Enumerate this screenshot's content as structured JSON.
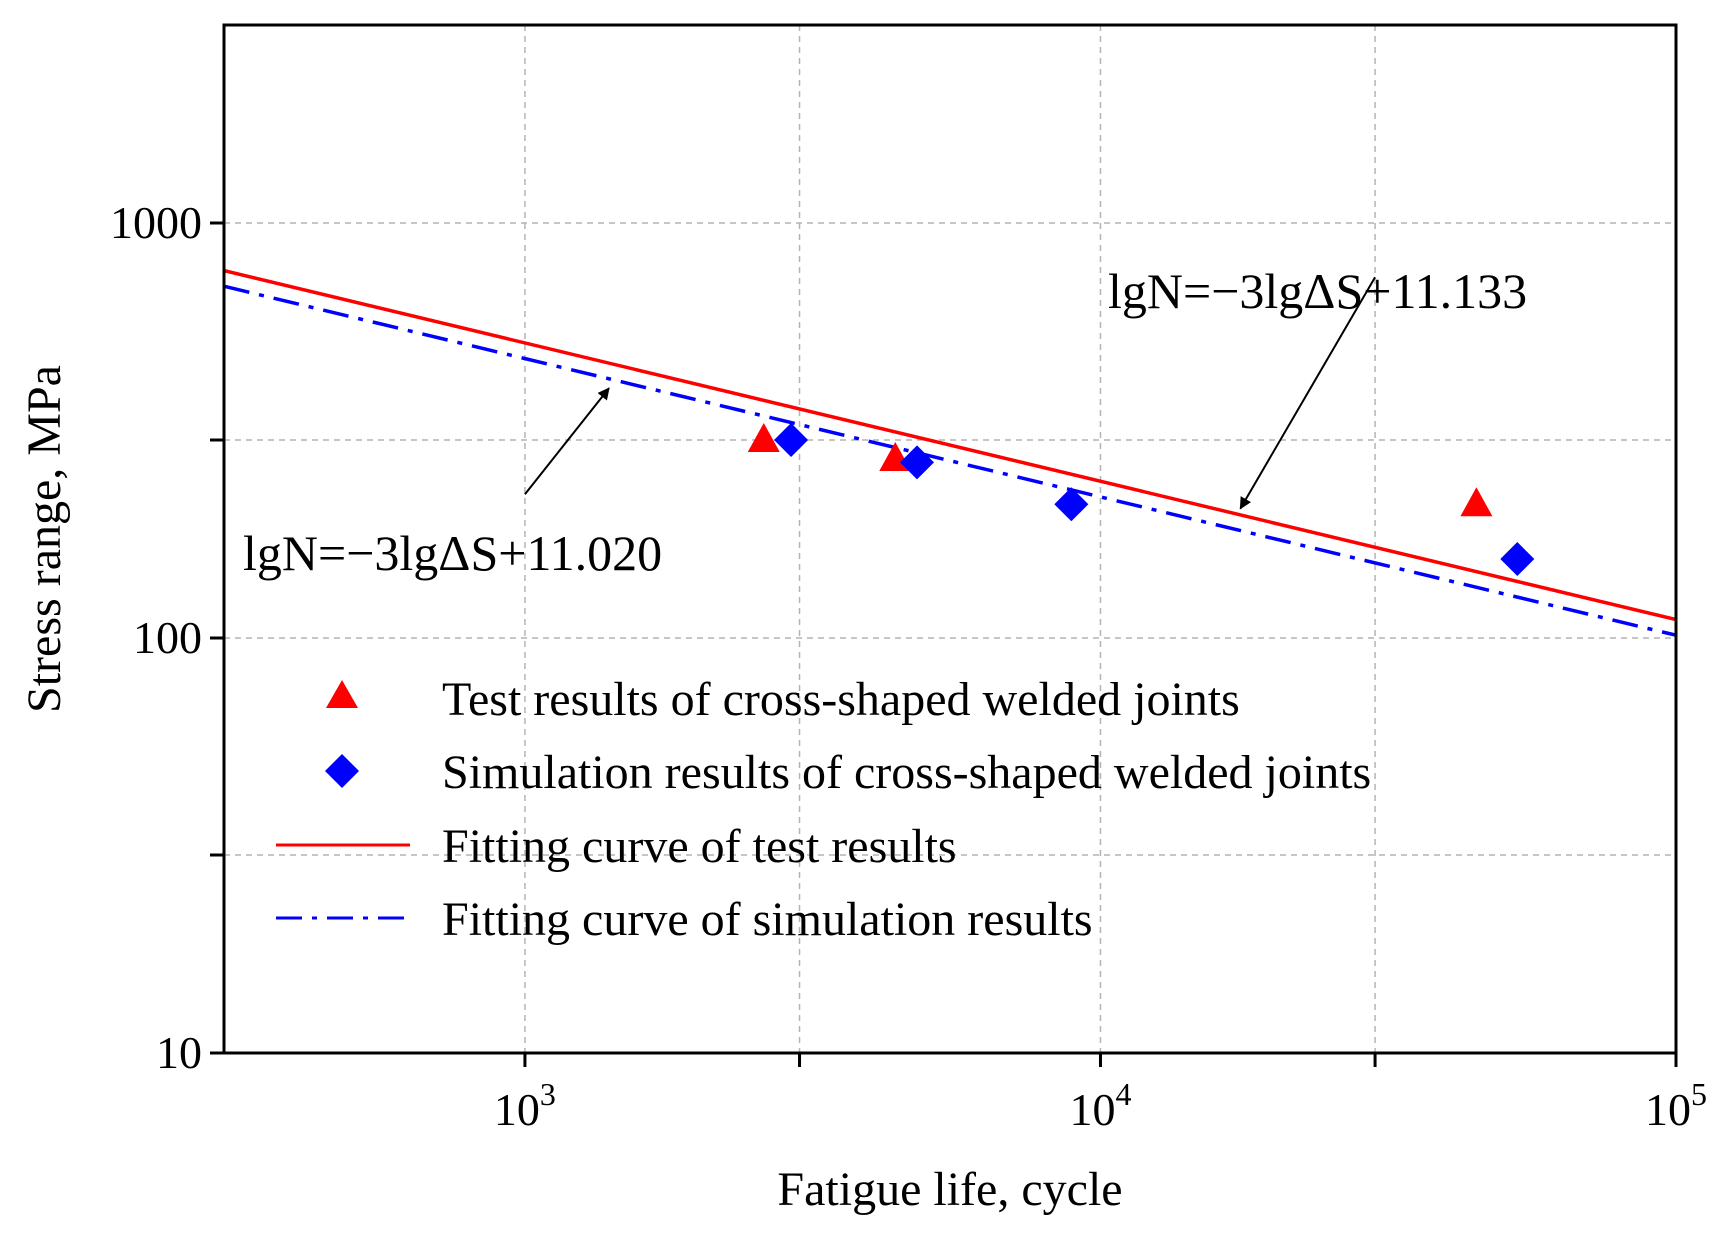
{
  "chart_data": {
    "type": "scatter",
    "xlabel": "Fatigue life, cycle",
    "ylabel": "Stress range, MPa",
    "xscale": "log",
    "yscale": "log",
    "xlim": [
      300,
      100000
    ],
    "ylim": [
      10,
      3000
    ],
    "grid": true,
    "legend_position": "bottom-left inside",
    "x_ticks": [
      {
        "value": 1000,
        "base": "10",
        "exp": "3"
      },
      {
        "value": 10000,
        "base": "10",
        "exp": "4"
      },
      {
        "value": 100000,
        "base": "10",
        "exp": "5"
      }
    ],
    "x_minor_ticks": [
      3000,
      30000
    ],
    "y_ticks": [
      {
        "value": 10,
        "label": "10"
      },
      {
        "value": 100,
        "label": "100"
      },
      {
        "value": 1000,
        "label": "1000"
      }
    ],
    "y_minor_ticks": [
      30,
      300
    ],
    "series": [
      {
        "name": "Test results of cross-shaped welded joints",
        "kind": "scatter",
        "marker": "triangle",
        "color": "#ff0000",
        "points": [
          [
            2600,
            300
          ],
          [
            4400,
            270
          ],
          [
            45000,
            210
          ]
        ]
      },
      {
        "name": "Simulation results of cross-shaped welded joints",
        "kind": "scatter",
        "marker": "diamond",
        "color": "#0000ff",
        "points": [
          [
            2900,
            300
          ],
          [
            4800,
            265
          ],
          [
            8900,
            210
          ],
          [
            53000,
            155
          ]
        ]
      },
      {
        "name": "Fitting curve of test results",
        "kind": "line",
        "style": "solid",
        "color": "#ff0000",
        "equation": {
          "slope": -3,
          "intercept": 11.133
        },
        "x_range": [
          300,
          100000
        ]
      },
      {
        "name": "Fitting curve of simulation results",
        "kind": "line",
        "style": "dash-dot",
        "color": "#0000ff",
        "equation": {
          "slope": -3,
          "intercept": 11.02
        },
        "x_range": [
          300,
          100000
        ]
      }
    ],
    "annotations": [
      {
        "id": "test-fit",
        "text": "lgN=−3lgΔS+11.133",
        "arrow_tail": [
          30000,
          740
        ],
        "arrow_head": [
          17500,
          205
        ]
      },
      {
        "id": "sim-fit",
        "text": "lgN=−3lgΔS+11.020",
        "arrow_tail": [
          1000,
          222
        ],
        "arrow_head": [
          1400,
          400
        ]
      }
    ]
  }
}
